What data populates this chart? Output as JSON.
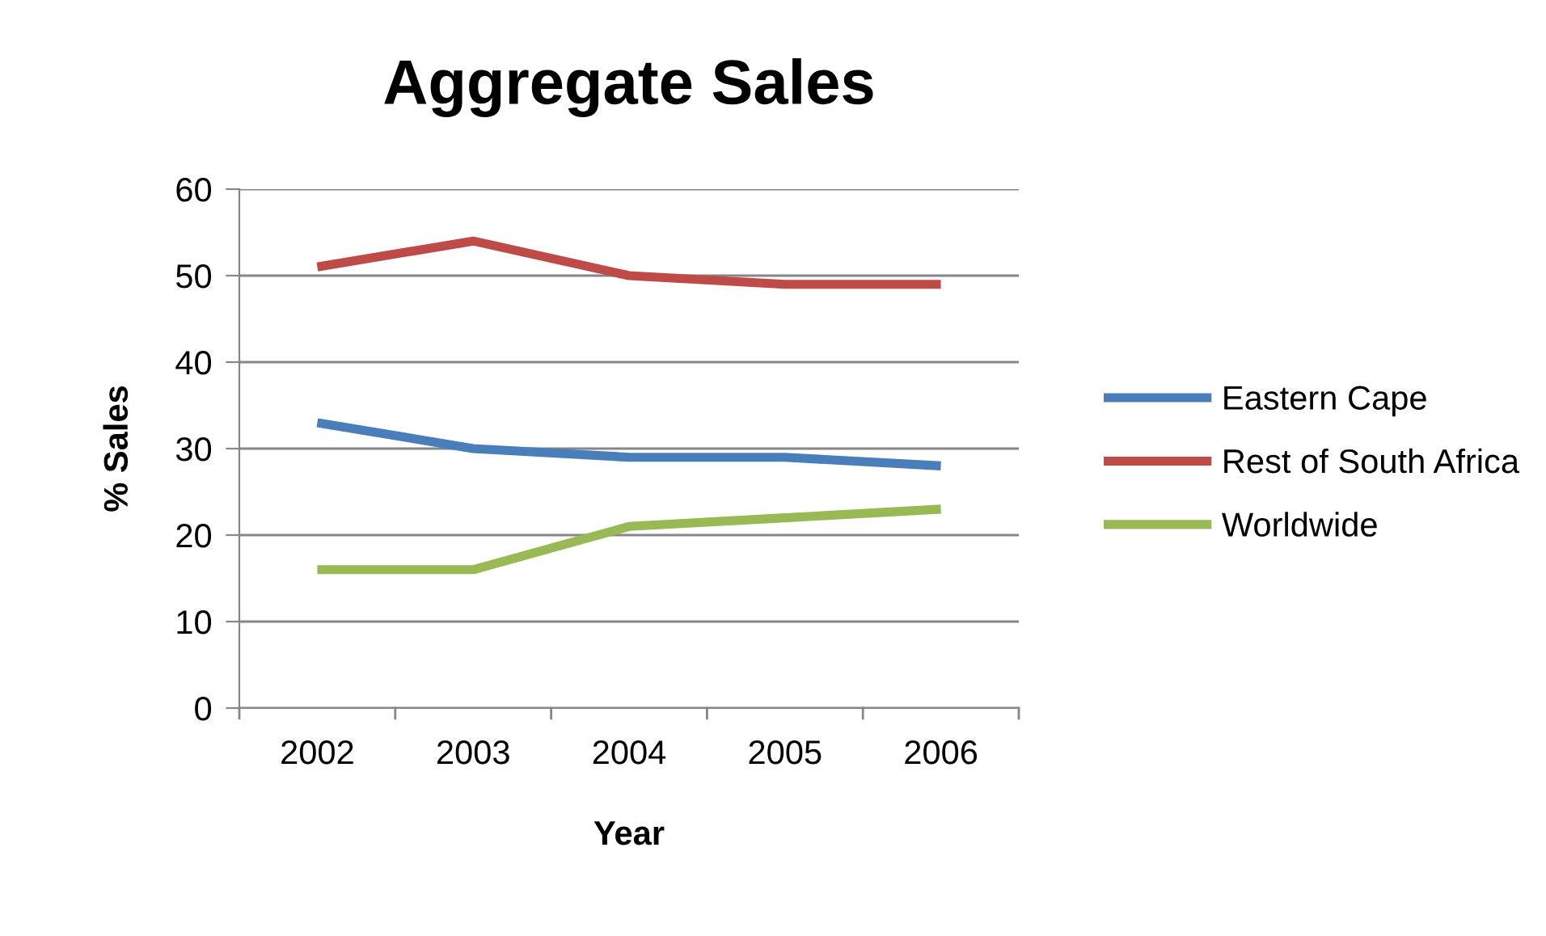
{
  "chart_data": {
    "type": "line",
    "title": "Aggregate Sales",
    "xlabel": "Year",
    "ylabel": "% Sales",
    "categories": [
      "2002",
      "2003",
      "2004",
      "2005",
      "2006"
    ],
    "series": [
      {
        "name": "Eastern Cape",
        "color": "#4a7ebb",
        "values": [
          33,
          30,
          29,
          29,
          28
        ]
      },
      {
        "name": "Rest of South Africa",
        "color": "#be4b48",
        "values": [
          51,
          54,
          50,
          49,
          49
        ]
      },
      {
        "name": "Worldwide",
        "color": "#98b954",
        "values": [
          16,
          16,
          21,
          22,
          23
        ]
      }
    ],
    "ylim": [
      0,
      60
    ],
    "yticks": [
      0,
      10,
      20,
      30,
      40,
      50,
      60
    ],
    "grid": "y",
    "legend": "right",
    "marker": "none",
    "line_style": "solid"
  }
}
